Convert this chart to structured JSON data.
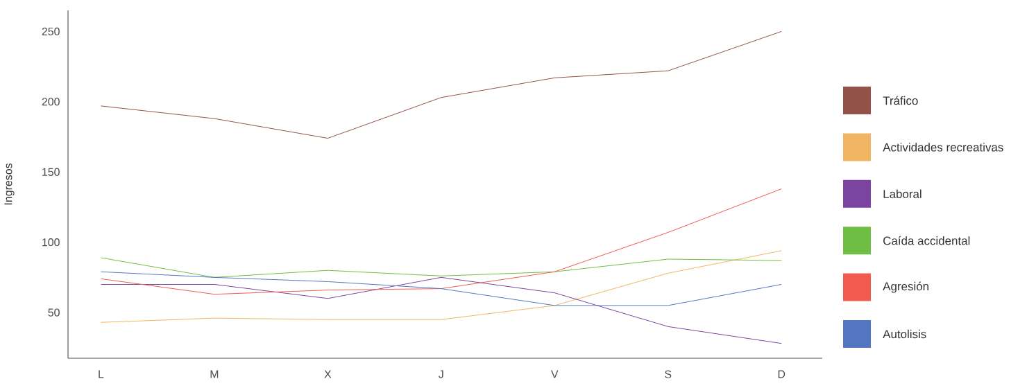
{
  "chart_data": {
    "type": "line",
    "ylabel": "Ingresos",
    "categories": [
      "L",
      "M",
      "X",
      "J",
      "V",
      "S",
      "D"
    ],
    "ylim": [
      17.5,
      265
    ],
    "yticks": [
      50,
      100,
      150,
      200,
      250
    ],
    "legend": "right",
    "grid": false,
    "marker": "none",
    "series": [
      {
        "name": "Tráfico",
        "color": "#955249",
        "values": [
          197,
          188,
          174,
          203,
          217,
          222,
          250
        ]
      },
      {
        "name": "Actividades recreativas",
        "color": "#f0b562",
        "values": [
          43,
          46,
          45,
          45,
          55,
          78,
          94
        ]
      },
      {
        "name": "Laboral",
        "color": "#7a44a0",
        "values": [
          70,
          70,
          60,
          75,
          64,
          40,
          28
        ]
      },
      {
        "name": "Caída accidental",
        "color": "#6fbe44",
        "values": [
          89,
          75,
          80,
          76,
          79,
          88,
          87
        ]
      },
      {
        "name": "Agresión",
        "color": "#f15a4d",
        "values": [
          74,
          63,
          66,
          67,
          79,
          107,
          138
        ]
      },
      {
        "name": "Autolisis",
        "color": "#5476c0",
        "values": [
          79,
          75,
          72,
          67,
          55,
          55,
          70
        ]
      }
    ]
  }
}
